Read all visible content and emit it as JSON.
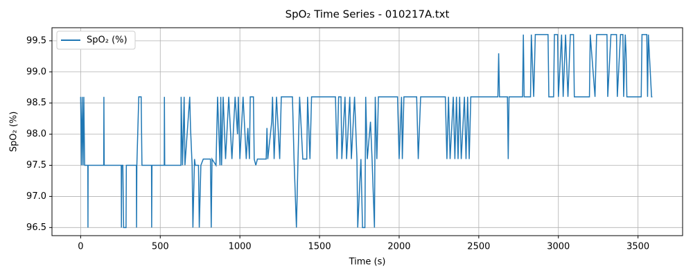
{
  "chart_data": {
    "type": "line",
    "title": "SpO₂ Time Series - 010217A.txt",
    "x_label": "Time (s)",
    "y_label": "SpO₂ (%)",
    "x": [
      0,
      5,
      10,
      15,
      20,
      25,
      45,
      46,
      47,
      145,
      146,
      148,
      255,
      256,
      258,
      265,
      270,
      285,
      287,
      350,
      351,
      353,
      365,
      380,
      385,
      445,
      446,
      448,
      525,
      526,
      528,
      630,
      631,
      640,
      650,
      655,
      685,
      690,
      700,
      705,
      715,
      720,
      740,
      745,
      755,
      770,
      800,
      815,
      820,
      825,
      850,
      860,
      875,
      880,
      885,
      895,
      910,
      930,
      950,
      970,
      985,
      990,
      1000,
      1020,
      1040,
      1050,
      1060,
      1065,
      1085,
      1090,
      1100,
      1110,
      1165,
      1170,
      1175,
      1200,
      1205,
      1215,
      1230,
      1250,
      1260,
      1330,
      1340,
      1355,
      1365,
      1375,
      1395,
      1420,
      1425,
      1440,
      1450,
      1600,
      1610,
      1620,
      1635,
      1640,
      1660,
      1670,
      1680,
      1690,
      1700,
      1720,
      1735,
      1740,
      1760,
      1770,
      1785,
      1790,
      1800,
      1820,
      1830,
      1845,
      1850,
      1860,
      1870,
      1990,
      2000,
      2015,
      2020,
      2030,
      2110,
      2120,
      2135,
      2290,
      2300,
      2310,
      2320,
      2340,
      2350,
      2360,
      2370,
      2380,
      2390,
      2410,
      2420,
      2430,
      2440,
      2450,
      2620,
      2625,
      2630,
      2680,
      2685,
      2690,
      2775,
      2780,
      2785,
      2825,
      2830,
      2845,
      2855,
      2935,
      2940,
      2970,
      2975,
      2995,
      3000,
      3020,
      3030,
      3045,
      3060,
      3075,
      3095,
      3100,
      3195,
      3200,
      3230,
      3240,
      3305,
      3310,
      3330,
      3365,
      3370,
      3390,
      3405,
      3410,
      3420,
      3425,
      3430,
      3520,
      3525,
      3555,
      3560,
      3565,
      3585,
      3590
    ],
    "series": [
      {
        "name": "SpO₂ (%)",
        "color": "#1f77b4",
        "values": [
          98.6,
          97.5,
          98.6,
          97.5,
          98.6,
          97.5,
          97.5,
          96.5,
          97.5,
          97.5,
          98.6,
          97.5,
          97.5,
          96.5,
          97.5,
          97.5,
          96.5,
          96.5,
          97.5,
          97.5,
          96.5,
          97.5,
          98.6,
          98.6,
          97.5,
          97.5,
          96.5,
          97.5,
          97.5,
          98.6,
          97.5,
          97.5,
          98.6,
          97.5,
          98.6,
          97.5,
          98.6,
          98.1,
          97.5,
          96.5,
          97.6,
          97.5,
          97.5,
          96.5,
          97.5,
          97.6,
          97.6,
          97.6,
          96.5,
          97.6,
          97.5,
          98.6,
          97.5,
          98.6,
          97.5,
          98.6,
          97.6,
          98.6,
          97.6,
          98.6,
          98.0,
          98.6,
          97.6,
          98.6,
          97.6,
          98.1,
          97.6,
          98.6,
          98.6,
          97.6,
          97.5,
          97.6,
          97.6,
          98.1,
          97.6,
          98.2,
          98.6,
          97.6,
          98.6,
          97.6,
          98.6,
          98.6,
          97.6,
          96.5,
          97.6,
          98.6,
          97.6,
          97.6,
          98.6,
          97.6,
          98.6,
          98.6,
          97.6,
          98.6,
          98.6,
          97.6,
          98.6,
          97.6,
          98.1,
          98.6,
          97.6,
          98.6,
          97.6,
          96.5,
          97.6,
          96.5,
          96.5,
          98.6,
          97.6,
          98.2,
          97.6,
          96.5,
          98.6,
          97.6,
          98.6,
          98.6,
          97.6,
          98.6,
          97.6,
          98.6,
          98.6,
          97.6,
          98.6,
          98.6,
          97.6,
          98.6,
          97.6,
          98.6,
          97.6,
          98.6,
          97.6,
          98.6,
          97.6,
          98.6,
          97.6,
          98.6,
          97.6,
          98.6,
          98.6,
          99.3,
          98.6,
          98.6,
          97.6,
          98.6,
          98.6,
          99.6,
          98.6,
          98.6,
          99.6,
          98.6,
          99.6,
          99.6,
          98.6,
          98.6,
          99.6,
          99.6,
          98.6,
          99.6,
          98.6,
          99.6,
          98.6,
          99.6,
          99.6,
          98.6,
          98.6,
          99.6,
          98.6,
          99.6,
          99.6,
          98.6,
          99.6,
          99.6,
          98.6,
          99.6,
          99.6,
          98.6,
          99.6,
          99.3,
          98.6,
          98.6,
          99.6,
          99.6,
          98.6,
          99.6,
          98.6,
          98.6
        ]
      }
    ],
    "xlim": [
      -180,
      3780
    ],
    "ylim": [
      96.37,
      99.71
    ],
    "xticks": [
      0,
      500,
      1000,
      1500,
      2000,
      2500,
      3000,
      3500
    ],
    "yticks": [
      96.5,
      {
        "value": 97,
        "label": "97.0"
      },
      97.5,
      {
        "value": 98,
        "label": "98.0"
      },
      98.5,
      {
        "value": 99,
        "label": "99.0"
      },
      99.5
    ],
    "grid": true,
    "legend": "upper left"
  }
}
